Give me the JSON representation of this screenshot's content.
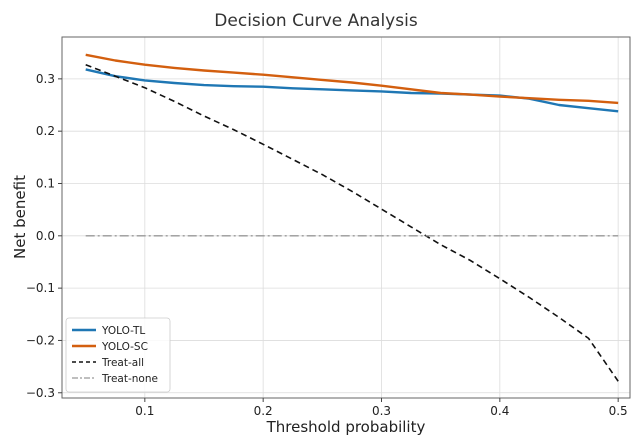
{
  "chart_data": {
    "type": "line",
    "title": "Decision Curve Analysis",
    "xlabel": "Threshold probability",
    "ylabel": "Net benefit",
    "xlim": [
      0.03,
      0.51
    ],
    "ylim": [
      -0.31,
      0.38
    ],
    "xticks": [
      0.1,
      0.2,
      0.3,
      0.4,
      0.5
    ],
    "yticks": [
      -0.3,
      -0.2,
      -0.1,
      0.0,
      0.1,
      0.2,
      0.3
    ],
    "xtick_labels": [
      "0.1",
      "0.2",
      "0.3",
      "0.4",
      "0.5"
    ],
    "ytick_labels": [
      "−0.3",
      "−0.2",
      "−0.1",
      "0.0",
      "0.1",
      "0.2",
      "0.3"
    ],
    "grid": true,
    "legend_position": "bottom-left",
    "x": [
      0.05,
      0.075,
      0.1,
      0.125,
      0.15,
      0.175,
      0.2,
      0.225,
      0.25,
      0.275,
      0.3,
      0.325,
      0.35,
      0.375,
      0.4,
      0.425,
      0.45,
      0.475,
      0.5
    ],
    "series": [
      {
        "name": "YOLO-TL",
        "color": "#1f77b4",
        "style": "solid",
        "values": [
          0.318,
          0.305,
          0.297,
          0.292,
          0.288,
          0.286,
          0.285,
          0.282,
          0.28,
          0.278,
          0.276,
          0.273,
          0.272,
          0.27,
          0.268,
          0.262,
          0.25,
          0.244,
          0.238
        ]
      },
      {
        "name": "YOLO-SC",
        "color": "#d35f0f",
        "style": "solid",
        "values": [
          0.346,
          0.335,
          0.327,
          0.321,
          0.316,
          0.312,
          0.308,
          0.303,
          0.298,
          0.293,
          0.287,
          0.28,
          0.273,
          0.27,
          0.266,
          0.263,
          0.26,
          0.258,
          0.254
        ]
      },
      {
        "name": "Treat-all",
        "color": "#111111",
        "style": "dashed",
        "values": [
          0.327,
          0.305,
          0.283,
          0.257,
          0.229,
          0.203,
          0.175,
          0.146,
          0.117,
          0.085,
          0.051,
          0.017,
          -0.017,
          -0.047,
          -0.082,
          -0.118,
          -0.156,
          -0.196,
          -0.278
        ]
      },
      {
        "name": "Treat-none",
        "color": "#999999",
        "style": "dashdot",
        "values": [
          0,
          0,
          0,
          0,
          0,
          0,
          0,
          0,
          0,
          0,
          0,
          0,
          0,
          0,
          0,
          0,
          0,
          0,
          0
        ]
      }
    ]
  }
}
